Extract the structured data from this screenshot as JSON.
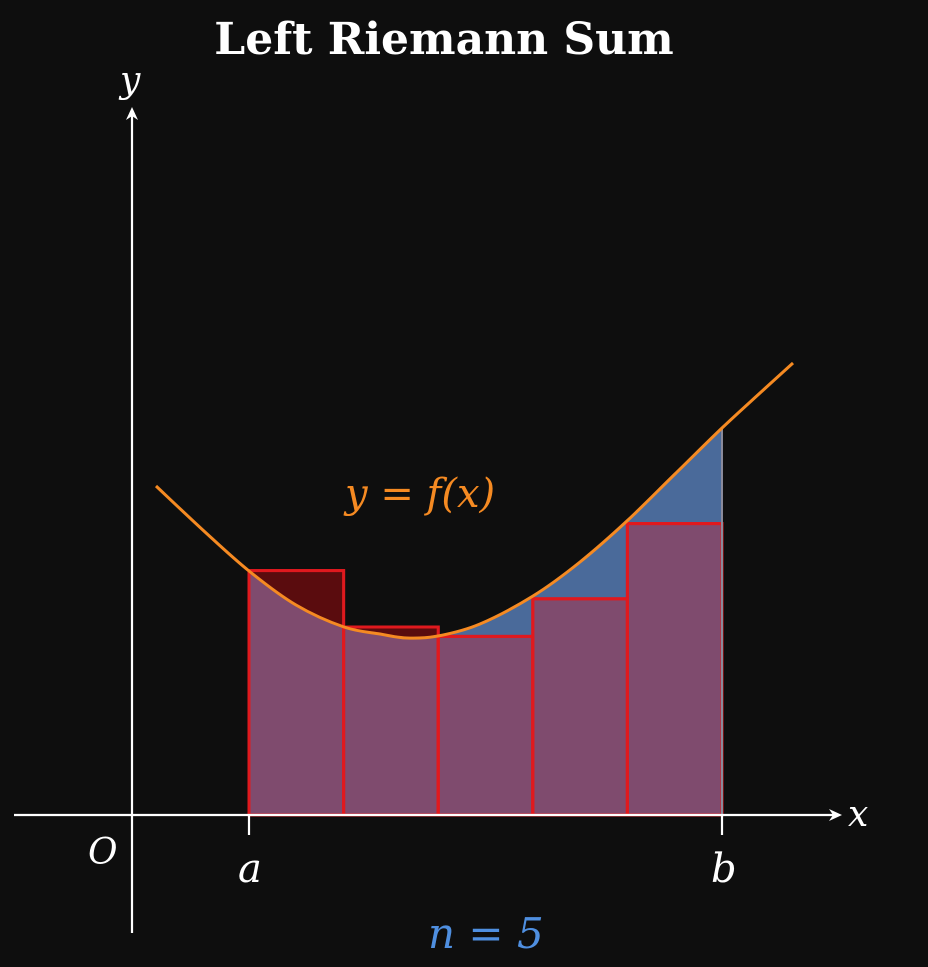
{
  "title": "Left Riemann Sum",
  "axes": {
    "x_label": "x",
    "y_label": "y",
    "origin_label": "O"
  },
  "bounds": {
    "a_label": "a",
    "b_label": "b"
  },
  "function_label": "y = f(x)",
  "n_label": "n = 5",
  "colors": {
    "background": "#0e0e0e",
    "curve": "#f58a22",
    "rect_fill": "#7f4b6e",
    "rect_stroke": "#e0191e",
    "overestimate_fill": "#5a0c0e",
    "underestimate_fill": "#4a6a9a",
    "n_label": "#4f8fe0",
    "axes": "#ffffff"
  },
  "chart_data": {
    "type": "area",
    "subdivisions": 5,
    "rule": "left",
    "rectangles": [
      {
        "index": 1,
        "height": 2.6
      },
      {
        "index": 2,
        "height": 2.0
      },
      {
        "index": 3,
        "height": 1.9
      },
      {
        "index": 4,
        "height": 2.3
      },
      {
        "index": 5,
        "height": 3.1
      }
    ]
  }
}
